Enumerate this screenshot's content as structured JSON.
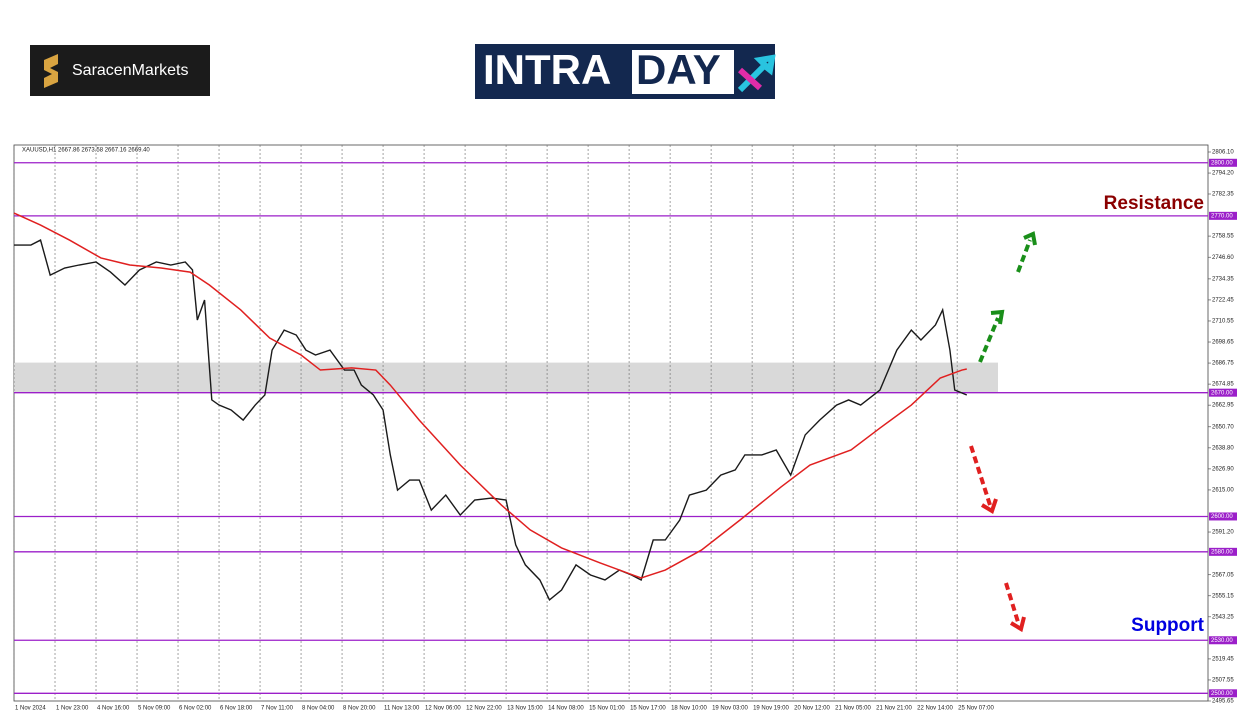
{
  "header": {
    "broker_logo": "SaracenMarkets",
    "intraday_logo": [
      "INTRA",
      "DAY"
    ]
  },
  "chart_data": {
    "type": "line",
    "subtitle": "XAUUSD,H1  2667.86 2673.58 2667.16 2669.40",
    "series": [
      {
        "color": "#1a1a1a",
        "x": [
          0,
          7,
          11,
          15,
          21,
          27,
          34,
          40,
          46,
          52,
          59,
          65,
          71,
          74,
          76,
          79,
          82,
          85,
          90,
          95,
          100,
          104,
          107,
          112,
          117,
          121,
          125,
          131,
          137,
          141,
          144,
          149,
          153,
          156,
          159,
          164,
          168,
          173,
          179,
          185,
          191,
          198,
          204,
          208,
          212,
          218,
          222,
          227,
          233,
          239,
          245,
          251,
          256,
          260,
          265,
          270,
          276,
          280,
          287,
          293,
          299,
          303,
          310,
          316,
          322,
          328,
          334,
          341,
          346,
          351,
          359,
          366,
          372,
          376,
          382,
          385,
          388,
          390,
          395
        ],
        "values": [
          2753.5,
          2753.5,
          2756.3,
          2736.5,
          2740.5,
          2742.2,
          2743.9,
          2738.2,
          2730.9,
          2739.4,
          2743.9,
          2742.2,
          2743.9,
          2739.4,
          2711.1,
          2722.4,
          2665.9,
          2663.0,
          2660.2,
          2654.5,
          2663.0,
          2668.7,
          2694.1,
          2705.4,
          2702.6,
          2694.1,
          2691.3,
          2694.1,
          2682.8,
          2682.8,
          2674.3,
          2668.7,
          2660.2,
          2634.8,
          2614.9,
          2620.6,
          2620.6,
          2603.6,
          2612.1,
          2600.8,
          2609.3,
          2610.4,
          2609.3,
          2583.9,
          2572.6,
          2564.1,
          2552.8,
          2558.4,
          2572.6,
          2566.9,
          2564.1,
          2569.7,
          2566.9,
          2564.1,
          2586.7,
          2586.7,
          2598.0,
          2612.1,
          2614.9,
          2623.4,
          2626.3,
          2634.8,
          2634.8,
          2637.6,
          2623.4,
          2646.1,
          2654.5,
          2663.0,
          2665.9,
          2663.0,
          2671.5,
          2694.1,
          2705.4,
          2699.8,
          2708.3,
          2716.8,
          2694.1,
          2671.5,
          2668.7
        ]
      },
      {
        "color": "#e02020",
        "x": [
          0,
          11,
          23,
          36,
          48,
          61,
          73,
          81,
          94,
          106,
          119,
          127,
          140,
          150,
          156,
          168,
          185,
          202,
          214,
          227,
          243,
          260,
          270,
          285,
          301,
          318,
          330,
          347,
          359,
          372,
          384,
          393,
          395
        ],
        "values": [
          2771.6,
          2764.8,
          2756.3,
          2746.2,
          2742.2,
          2740.5,
          2738.2,
          2730.9,
          2716.8,
          2700.9,
          2691.3,
          2682.8,
          2684.0,
          2682.8,
          2674.3,
          2654.5,
          2629.1,
          2606.5,
          2592.4,
          2582.2,
          2573.7,
          2565.2,
          2569.7,
          2581.0,
          2598.0,
          2616.7,
          2629.1,
          2637.6,
          2650.0,
          2663.0,
          2678.3,
          2682.8,
          2683.4
        ]
      }
    ],
    "xlim": [
      0,
      495
    ],
    "xticks": [
      {
        "value": 0,
        "label": "1 Nov 2024"
      },
      {
        "value": 17,
        "label": "1 Nov 23:00"
      },
      {
        "value": 34,
        "label": "4 Nov 16:00"
      },
      {
        "value": 51,
        "label": "5 Nov 09:00"
      },
      {
        "value": 68,
        "label": "6 Nov 02:00"
      },
      {
        "value": 85,
        "label": "6 Nov 18:00"
      },
      {
        "value": 102,
        "label": "7 Nov 11:00"
      },
      {
        "value": 119,
        "label": "8 Nov 04:00"
      },
      {
        "value": 136,
        "label": "8 Nov 20:00"
      },
      {
        "value": 153,
        "label": "11 Nov 13:00"
      },
      {
        "value": 170,
        "label": "12 Nov 06:00"
      },
      {
        "value": 187,
        "label": "12 Nov 22:00"
      },
      {
        "value": 204,
        "label": "13 Nov 15:00"
      },
      {
        "value": 221,
        "label": "14 Nov 08:00"
      },
      {
        "value": 238,
        "label": "15 Nov 01:00"
      },
      {
        "value": 255,
        "label": "15 Nov 17:00"
      },
      {
        "value": 272,
        "label": "18 Nov 10:00"
      },
      {
        "value": 289,
        "label": "19 Nov 03:00"
      },
      {
        "value": 306,
        "label": "19 Nov 19:00"
      },
      {
        "value": 323,
        "label": "20 Nov 12:00"
      },
      {
        "value": 340,
        "label": "21 Nov 05:00"
      },
      {
        "value": 357,
        "label": "21 Nov 21:00"
      },
      {
        "value": 374,
        "label": "22 Nov 14:00"
      },
      {
        "value": 391,
        "label": "25 Nov 07:00"
      }
    ],
    "ylim": [
      2495.65,
      2806.1
    ],
    "yticks": [
      {
        "value": 2806.1,
        "label": "2806.10"
      },
      {
        "value": 2794.2,
        "label": "2794.20"
      },
      2782.35,
      2758.55,
      {
        "value": 2746.6,
        "label": "2746.60"
      },
      2734.35,
      2722.45,
      2710.55,
      2698.65,
      2686.75,
      2674.85,
      2662.95,
      {
        "value": 2650.7,
        "label": "2650.70"
      },
      {
        "value": 2638.8,
        "label": "2638.80"
      },
      {
        "value": 2626.9,
        "label": "2626.90"
      },
      {
        "value": 2615,
        "label": "2615.00"
      },
      {
        "value": 2591.2,
        "label": "2591.20"
      },
      2567.05,
      2555.15,
      2543.25,
      2519.45,
      2507.55,
      2495.65
    ],
    "grid": "x",
    "levels": [
      {
        "value": 2800,
        "label": "2800.00"
      },
      {
        "value": 2770,
        "label": "2770.00"
      },
      {
        "value": 2670,
        "label": "2670.00"
      },
      {
        "value": 2600,
        "label": "2600.00"
      },
      {
        "value": 2580,
        "label": "2580.00"
      },
      {
        "value": 2530,
        "label": "2530.00"
      },
      {
        "value": 2500,
        "label": "2500.00"
      }
    ],
    "level_color": "#9b1fc9",
    "zone": [
      2670,
      2687
    ],
    "annotations": [
      {
        "text": "Resistance",
        "color": "#8b0000"
      },
      {
        "text": "Support",
        "color": "#0000e0"
      }
    ]
  }
}
